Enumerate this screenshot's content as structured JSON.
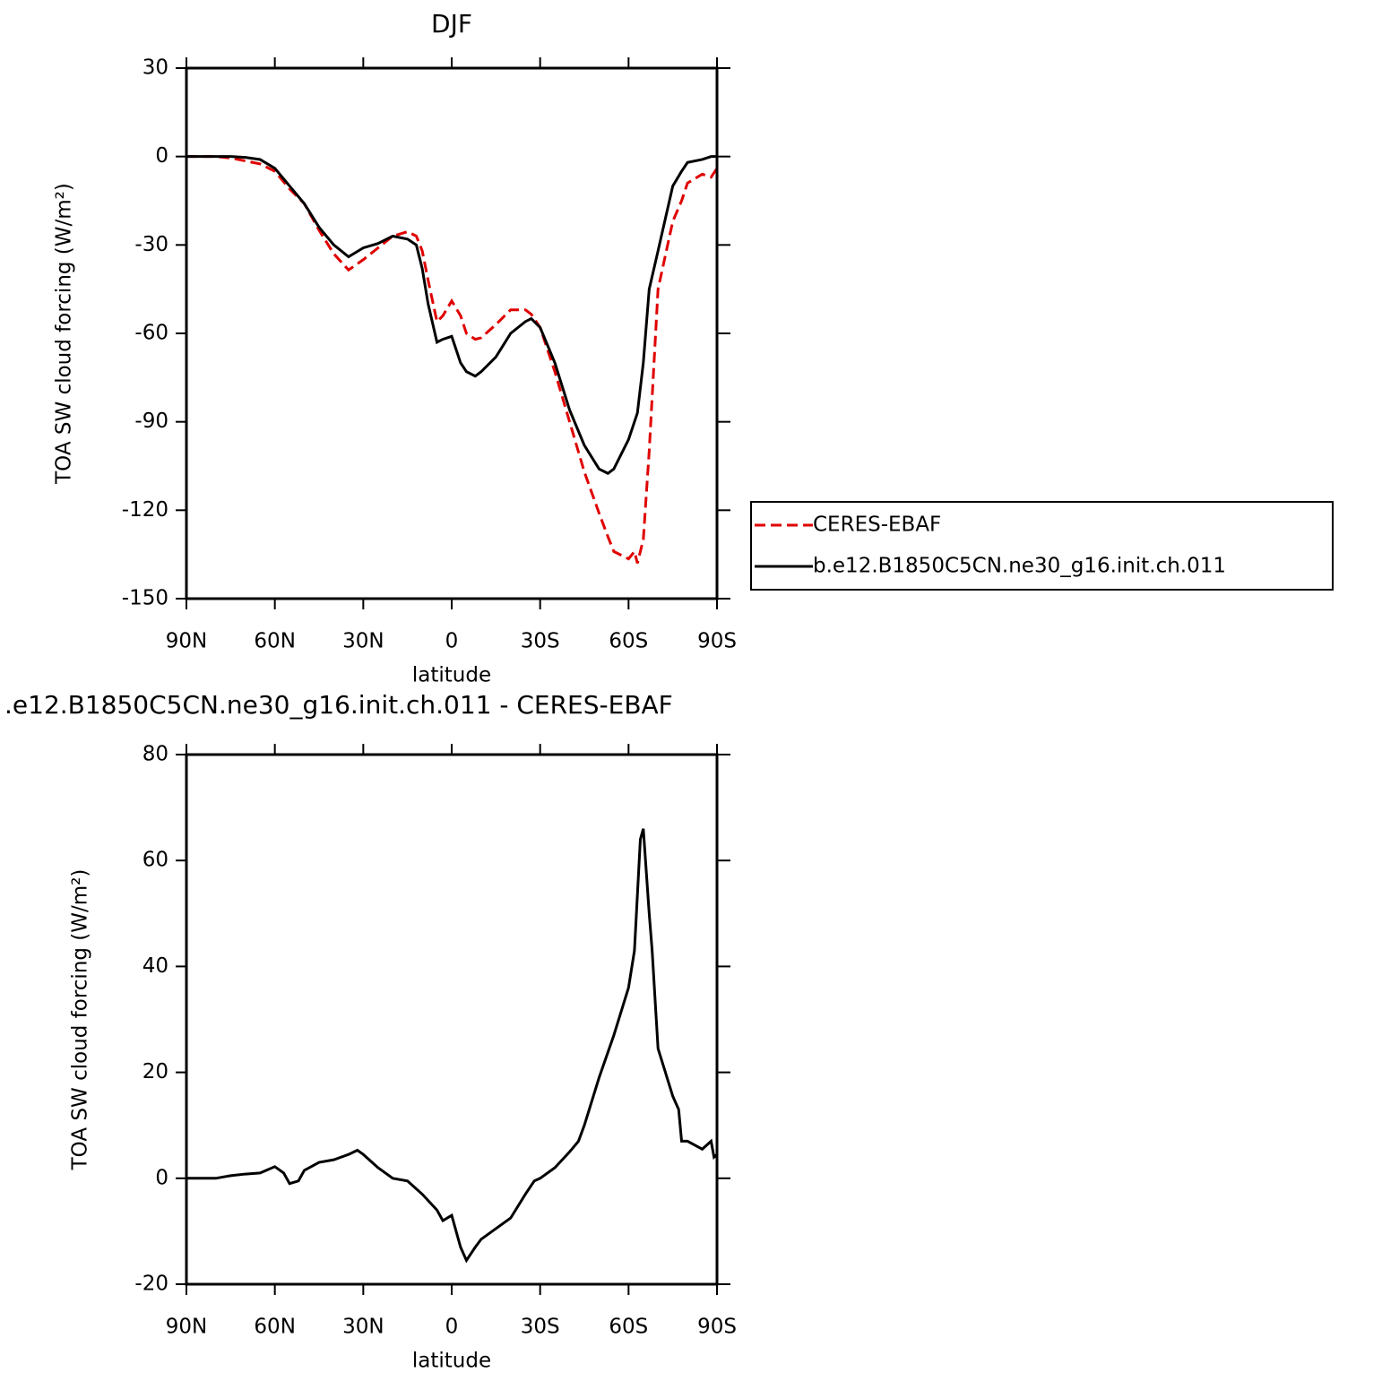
{
  "chart_data": [
    {
      "type": "line",
      "title": "DJF",
      "xlabel": "latitude",
      "ylabel": "TOA SW cloud forcing (W/m²)",
      "xlim": [
        90,
        -90
      ],
      "xticks": [
        {
          "value": 90,
          "label": "90N"
        },
        {
          "value": 60,
          "label": "60N"
        },
        {
          "value": 30,
          "label": "30N"
        },
        0,
        {
          "value": -30,
          "label": "30S"
        },
        {
          "value": -60,
          "label": "60S"
        },
        {
          "value": -90,
          "label": "90S"
        }
      ],
      "ylim": [
        -150,
        30
      ],
      "yticks": [
        -150,
        -120,
        -90,
        -60,
        -30,
        0,
        30
      ],
      "legend": "right",
      "x": [
        90,
        85,
        80,
        75,
        70,
        65,
        60,
        55,
        50,
        45,
        40,
        35,
        30,
        25,
        20,
        15,
        12,
        10,
        8,
        5,
        3,
        0,
        -3,
        -5,
        -8,
        -10,
        -15,
        -20,
        -25,
        -27,
        -30,
        -35,
        -40,
        -45,
        -50,
        -53,
        -55,
        -60,
        -62,
        -63,
        -65,
        -67,
        -70,
        -75,
        -78,
        -80,
        -85,
        -88,
        -90
      ],
      "series": [
        {
          "name": "CERES-EBAF",
          "color": "#e00000",
          "line_style": "dashed",
          "values": [
            0,
            0,
            0,
            -0.5,
            -1.5,
            -2.5,
            -5,
            -11,
            -16,
            -25,
            -33,
            -38.5,
            -35,
            -31,
            -27,
            -25.5,
            -27,
            -32,
            -42,
            -56,
            -54,
            -49,
            -54,
            -60,
            -62,
            -61.5,
            -57,
            -52,
            -52,
            -53.5,
            -58,
            -73,
            -90,
            -107,
            -121,
            -129,
            -134,
            -136.5,
            -134,
            -138,
            -130,
            -100,
            -45,
            -22,
            -15,
            -9,
            -6,
            -7,
            -4
          ]
        },
        {
          "name": "b.e12.B1850C5CN.ne30_g16.init.ch.011",
          "color": "#000000",
          "line_style": "solid",
          "values": [
            0,
            0,
            0,
            0,
            -0.3,
            -1,
            -4,
            -10,
            -16,
            -24,
            -30,
            -34,
            -31,
            -29.5,
            -27,
            -28,
            -30,
            -38,
            -50,
            -63,
            -62,
            -61,
            -70,
            -73,
            -74.5,
            -73,
            -68,
            -60,
            -56,
            -55,
            -58,
            -70,
            -86,
            -98,
            -106,
            -107.5,
            -106,
            -96,
            -90,
            -87,
            -70,
            -45,
            -32,
            -10,
            -5,
            -2,
            -1,
            0,
            0
          ]
        }
      ]
    },
    {
      "type": "line",
      "title": ".e12.B1850C5CN.ne30_g16.init.ch.011 - CERES-EBAF",
      "xlabel": "latitude",
      "ylabel": "TOA SW cloud forcing (W/m²)",
      "xlim": [
        90,
        -90
      ],
      "xticks": [
        {
          "value": 90,
          "label": "90N"
        },
        {
          "value": 60,
          "label": "60N"
        },
        {
          "value": 30,
          "label": "30N"
        },
        0,
        {
          "value": -30,
          "label": "30S"
        },
        {
          "value": -60,
          "label": "60S"
        },
        {
          "value": -90,
          "label": "90S"
        }
      ],
      "ylim": [
        -20,
        80
      ],
      "yticks": [
        -20,
        0,
        20,
        40,
        60,
        80
      ],
      "x": [
        90,
        85,
        80,
        75,
        70,
        65,
        60,
        57,
        55,
        52,
        50,
        45,
        40,
        35,
        32,
        30,
        25,
        20,
        15,
        10,
        5,
        3,
        0,
        -3,
        -5,
        -8,
        -10,
        -15,
        -20,
        -25,
        -28,
        -30,
        -35,
        -40,
        -43,
        -45,
        -50,
        -55,
        -60,
        -62,
        -64,
        -65,
        -67,
        -68,
        -70,
        -75,
        -77,
        -78,
        -80,
        -85,
        -88,
        -89,
        -90
      ],
      "series": [
        {
          "color": "#000000",
          "line_style": "solid",
          "values": [
            0,
            0,
            0,
            0.5,
            0.8,
            1,
            2.2,
            1,
            -1,
            -0.5,
            1.5,
            3,
            3.5,
            4.5,
            5.3,
            4.5,
            2,
            0,
            -0.5,
            -3,
            -6,
            -8,
            -7,
            -13,
            -15.5,
            -13,
            -11.5,
            -9.5,
            -7.5,
            -3,
            -0.5,
            0,
            2,
            5,
            7,
            10,
            19,
            27,
            36,
            43,
            64,
            66,
            50,
            43,
            24.5,
            15.5,
            13,
            7,
            7,
            5.5,
            7,
            4,
            4.5
          ]
        }
      ]
    }
  ]
}
